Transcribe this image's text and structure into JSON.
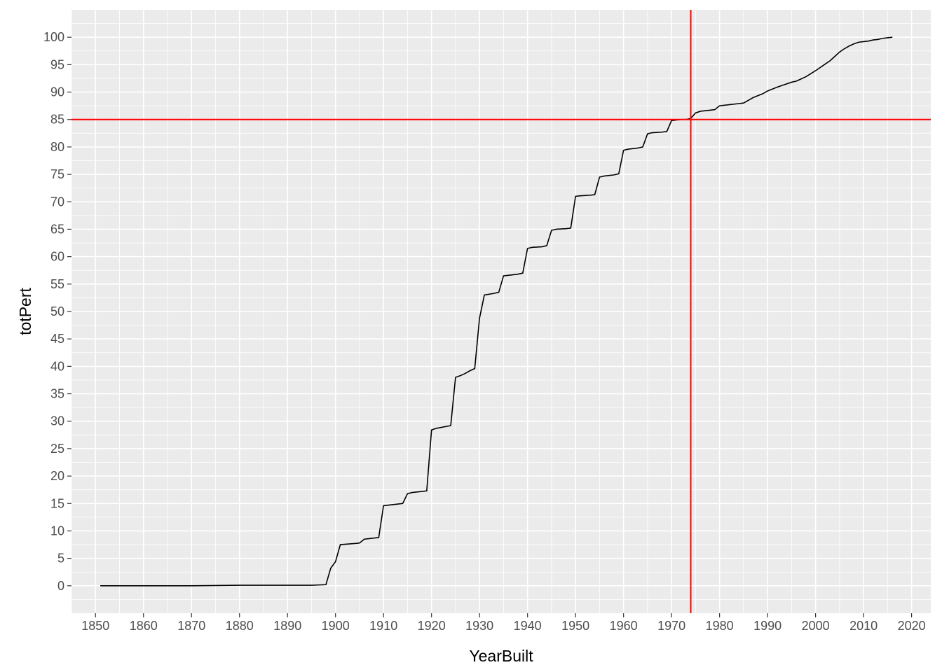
{
  "chart_data": {
    "type": "line",
    "title": "",
    "xlabel": "YearBuilt",
    "ylabel": "totPert",
    "xlim": [
      1845,
      2024
    ],
    "ylim": [
      -5,
      105
    ],
    "x_ticks": [
      1850,
      1860,
      1870,
      1880,
      1890,
      1900,
      1910,
      1920,
      1930,
      1940,
      1950,
      1960,
      1970,
      1980,
      1990,
      2000,
      2010,
      2020
    ],
    "y_ticks": [
      0,
      5,
      10,
      15,
      20,
      25,
      30,
      35,
      40,
      45,
      50,
      55,
      60,
      65,
      70,
      75,
      80,
      85,
      90,
      95,
      100
    ],
    "grid": true,
    "background": "#ebebeb",
    "line_color": "#000000",
    "reference_line_color": "#ff0000",
    "reference_lines": {
      "vline": 1974,
      "hline": 85
    },
    "series": [
      {
        "x": [
          1851,
          1860,
          1870,
          1880,
          1885,
          1890,
          1895,
          1898,
          1899,
          1900,
          1901,
          1904,
          1905,
          1906,
          1907,
          1909,
          1910,
          1913,
          1914,
          1915,
          1916,
          1919,
          1920,
          1921,
          1924,
          1925,
          1926,
          1927,
          1928,
          1929,
          1930,
          1931,
          1933,
          1934,
          1935,
          1936,
          1938,
          1939,
          1940,
          1941,
          1943,
          1944,
          1945,
          1946,
          1948,
          1949,
          1950,
          1951,
          1953,
          1954,
          1955,
          1956,
          1958,
          1959,
          1960,
          1961,
          1963,
          1964,
          1965,
          1966,
          1968,
          1969,
          1970,
          1971,
          1972,
          1973,
          1974,
          1975,
          1976,
          1978,
          1979,
          1980,
          1982,
          1984,
          1985,
          1986,
          1987,
          1989,
          1990,
          1992,
          1993,
          1995,
          1996,
          1998,
          2000,
          2002,
          2003,
          2004,
          2005,
          2006,
          2007,
          2008,
          2009,
          2010,
          2011,
          2012,
          2013,
          2014,
          2015,
          2016
        ],
        "y": [
          0,
          0,
          0,
          0.1,
          0.1,
          0.1,
          0.1,
          0.2,
          3.2,
          4.4,
          7.5,
          7.7,
          7.8,
          8.5,
          8.6,
          8.8,
          14.6,
          14.9,
          15.0,
          16.8,
          17.0,
          17.3,
          28.4,
          28.7,
          29.2,
          38.0,
          38.3,
          38.7,
          39.2,
          39.6,
          48.8,
          53.0,
          53.3,
          53.5,
          56.5,
          56.6,
          56.8,
          57.0,
          61.5,
          61.7,
          61.8,
          62.0,
          64.8,
          65.0,
          65.1,
          65.2,
          71.0,
          71.1,
          71.2,
          71.3,
          74.5,
          74.7,
          74.9,
          75.1,
          79.4,
          79.6,
          79.8,
          80.0,
          82.4,
          82.6,
          82.7,
          82.8,
          84.8,
          84.9,
          85.0,
          85.0,
          85.2,
          86.2,
          86.5,
          86.7,
          86.8,
          87.5,
          87.7,
          87.9,
          88.0,
          88.5,
          89.0,
          89.7,
          90.2,
          90.9,
          91.2,
          91.8,
          92.0,
          92.8,
          93.9,
          95.1,
          95.7,
          96.5,
          97.3,
          97.9,
          98.4,
          98.8,
          99.1,
          99.2,
          99.3,
          99.5,
          99.6,
          99.8,
          99.9,
          100.0
        ]
      }
    ]
  }
}
